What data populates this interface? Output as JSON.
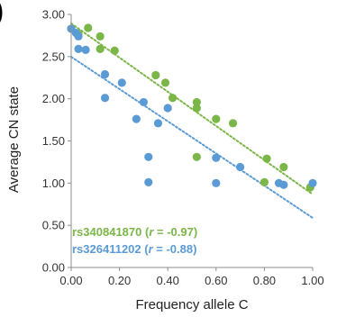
{
  "chart_data": {
    "type": "scatter",
    "title": "",
    "xlabel": "Frequency allele C",
    "ylabel": "Average CN state",
    "xlim": [
      0,
      1
    ],
    "ylim": [
      0,
      3
    ],
    "xticks": [
      "0.00",
      "0.20",
      "0.40",
      "0.60",
      "0.80",
      "1.00"
    ],
    "yticks": [
      "0.00",
      "0.50",
      "1.00",
      "1.50",
      "2.00",
      "2.50",
      "3.00"
    ],
    "grid": false,
    "legend_position": "bottom-left",
    "series": [
      {
        "name": "rs340841870",
        "legend_label": "rs340841870 (r = -0.97)",
        "label_name": "rs340841870 (",
        "label_var": "r",
        "label_value": " = -0.97)",
        "color": "#7ab648",
        "trendline": "linear",
        "points": [
          [
            0.0,
            2.83
          ],
          [
            0.03,
            2.77
          ],
          [
            0.07,
            2.84
          ],
          [
            0.12,
            2.74
          ],
          [
            0.12,
            2.59
          ],
          [
            0.18,
            2.57
          ],
          [
            0.35,
            2.28
          ],
          [
            0.39,
            2.19
          ],
          [
            0.42,
            2.01
          ],
          [
            0.52,
            1.96
          ],
          [
            0.52,
            1.89
          ],
          [
            0.6,
            1.76
          ],
          [
            0.67,
            1.71
          ],
          [
            0.52,
            1.31
          ],
          [
            0.81,
            1.29
          ],
          [
            0.88,
            1.19
          ],
          [
            0.8,
            1.01
          ],
          [
            0.99,
            0.95
          ]
        ]
      },
      {
        "name": "rs326411202",
        "legend_label": "rs326411202 (r = -0.88)",
        "label_name": "rs326411202 (",
        "label_var": "r",
        "label_value": " = -0.88)",
        "color": "#5b9bd5",
        "trendline": "linear",
        "points": [
          [
            0.0,
            2.83
          ],
          [
            0.02,
            2.78
          ],
          [
            0.03,
            2.74
          ],
          [
            0.03,
            2.59
          ],
          [
            0.06,
            2.58
          ],
          [
            0.14,
            2.29
          ],
          [
            0.21,
            2.19
          ],
          [
            0.14,
            2.01
          ],
          [
            0.3,
            1.96
          ],
          [
            0.4,
            1.89
          ],
          [
            0.27,
            1.76
          ],
          [
            0.36,
            1.71
          ],
          [
            0.32,
            1.31
          ],
          [
            0.6,
            1.3
          ],
          [
            0.7,
            1.19
          ],
          [
            0.32,
            1.01
          ],
          [
            0.6,
            1.0
          ],
          [
            0.86,
            1.0
          ],
          [
            0.88,
            0.98
          ],
          [
            1.0,
            1.0
          ]
        ]
      }
    ]
  }
}
